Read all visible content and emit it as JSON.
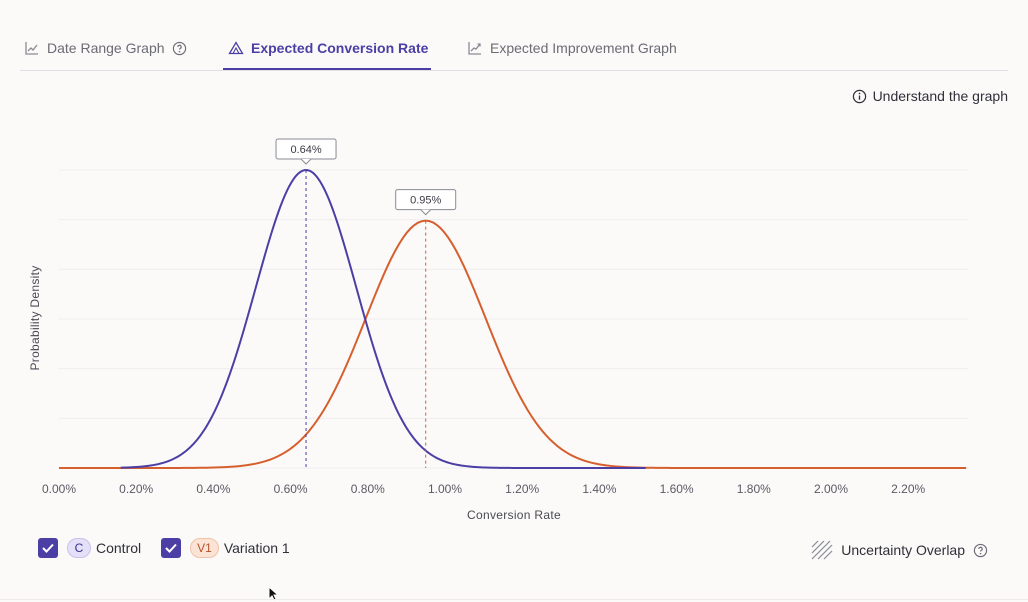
{
  "tabs": [
    {
      "label": "Date Range Graph",
      "icon": "line-chart-icon",
      "help_icon": "question-circle-icon"
    },
    {
      "label": "Expected Conversion Rate",
      "icon": "bell-curve-icon",
      "active": true
    },
    {
      "label": "Expected Improvement Graph",
      "icon": "trend-up-icon"
    }
  ],
  "help_link": {
    "label": "Understand the graph",
    "icon": "info-circle-icon"
  },
  "legend": {
    "items": [
      {
        "badge": "C",
        "label": "Control",
        "checked": true,
        "color": "#4b3fa6"
      },
      {
        "badge": "V1",
        "label": "Variation 1",
        "checked": true,
        "color": "#d65f2e"
      }
    ],
    "overlap_label": "Uncertainty Overlap",
    "overlap_icon": "hatch-icon"
  },
  "chart_data": {
    "type": "line",
    "xlabel": "Conversion Rate",
    "ylabel": "Probability Density",
    "xlim": [
      0,
      2.35
    ],
    "x_ticks": [
      "0.00%",
      "0.20%",
      "0.40%",
      "0.60%",
      "0.80%",
      "1.00%",
      "1.20%",
      "1.40%",
      "1.60%",
      "1.80%",
      "2.00%",
      "2.20%"
    ],
    "grid": true,
    "series": [
      {
        "name": "Control",
        "color": "#4b3fa6",
        "mean": 0.64,
        "std": 0.13,
        "peak": 1.0,
        "x_start": 0.16,
        "x_end": 1.52,
        "label": "0.64%"
      },
      {
        "name": "Variation 1",
        "color": "#d65f2e",
        "mean": 0.95,
        "std": 0.155,
        "peak": 0.83,
        "x_start": 0.0,
        "x_end": 2.35,
        "label": "0.95%"
      }
    ]
  }
}
